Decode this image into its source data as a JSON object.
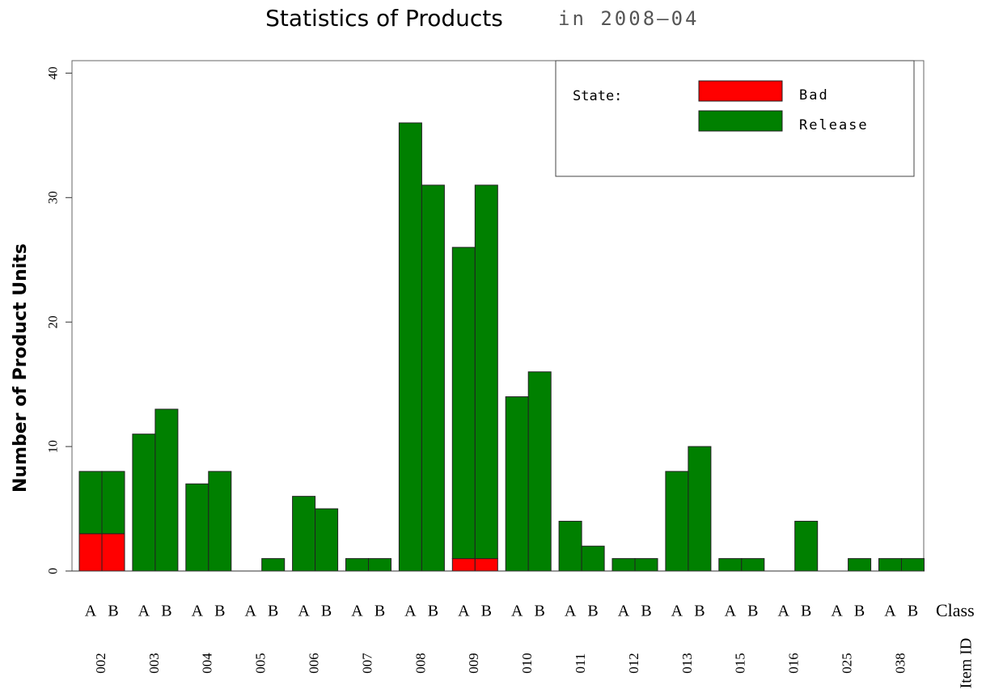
{
  "chart_data": {
    "type": "grouped-stacked-bar",
    "title": "Statistics of Products",
    "subtitle": "in 2008—04",
    "y_label": "Number of Product Units",
    "x_label": "Class",
    "x2_label": "Item ID",
    "groups": [
      "002",
      "003",
      "004",
      "005",
      "006",
      "007",
      "008",
      "009",
      "010",
      "011",
      "012",
      "013",
      "015",
      "016",
      "025",
      "038"
    ],
    "classes": [
      "A",
      "B"
    ],
    "legend_title": "State:",
    "series": [
      {
        "name": "Bad",
        "color": "#ff0000",
        "values": [
          [
            3,
            3
          ],
          [
            0,
            0
          ],
          [
            0,
            0
          ],
          [
            0,
            0
          ],
          [
            0,
            0
          ],
          [
            0,
            0
          ],
          [
            0,
            0
          ],
          [
            1,
            1
          ],
          [
            0,
            0
          ],
          [
            0,
            0
          ],
          [
            0,
            0
          ],
          [
            0,
            0
          ],
          [
            0,
            0
          ],
          [
            0,
            0
          ],
          [
            0,
            0
          ],
          [
            0,
            0
          ]
        ]
      },
      {
        "name": "Release",
        "color": "#008000",
        "values": [
          [
            5,
            5
          ],
          [
            11,
            13
          ],
          [
            7,
            8
          ],
          [
            0,
            1
          ],
          [
            6,
            5
          ],
          [
            1,
            1
          ],
          [
            36,
            31
          ],
          [
            25,
            30
          ],
          [
            14,
            16
          ],
          [
            4,
            2
          ],
          [
            1,
            1
          ],
          [
            8,
            10
          ],
          [
            1,
            1
          ],
          [
            0,
            4
          ],
          [
            0,
            1
          ],
          [
            1,
            1
          ]
        ]
      }
    ],
    "ylim": [
      0,
      41
    ],
    "yticks": [
      0,
      10,
      20,
      30,
      40
    ],
    "legend": "upper right"
  }
}
